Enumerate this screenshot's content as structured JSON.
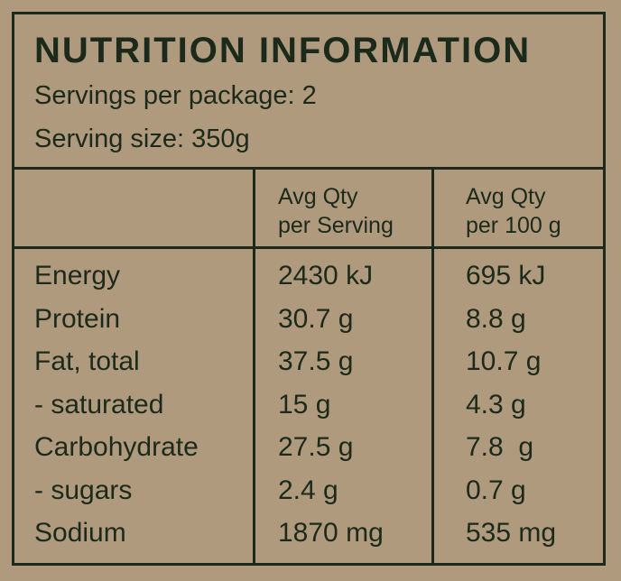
{
  "panel": {
    "title": "NUTRITION INFORMATION",
    "servings": "Servings per package: 2",
    "serving_size": "Serving size: 350g"
  },
  "columns": {
    "per_serving_line1": "Avg Qty",
    "per_serving_line2": "per Serving",
    "per_100g_line1": "Avg Qty",
    "per_100g_line2": "per 100 g"
  },
  "rows": [
    {
      "name": "Energy",
      "per_serving": "2430 kJ",
      "per_100g": "695 kJ"
    },
    {
      "name": "Protein",
      "per_serving": "30.7 g",
      "per_100g": "8.8 g"
    },
    {
      "name": "Fat, total",
      "per_serving": "37.5 g",
      "per_100g": "10.7 g"
    },
    {
      "name": "- saturated",
      "per_serving": "15 g",
      "per_100g": "4.3 g"
    },
    {
      "name": "Carbohydrate",
      "per_serving": "27.5 g",
      "per_100g": "7.8  g"
    },
    {
      "name": "- sugars",
      "per_serving": "2.4 g",
      "per_100g": "0.7 g"
    },
    {
      "name": "Sodium",
      "per_serving": "1870 mg",
      "per_100g": "535 mg"
    }
  ],
  "colors": {
    "background": "#b09a7e",
    "ink": "#1b2a1a"
  }
}
